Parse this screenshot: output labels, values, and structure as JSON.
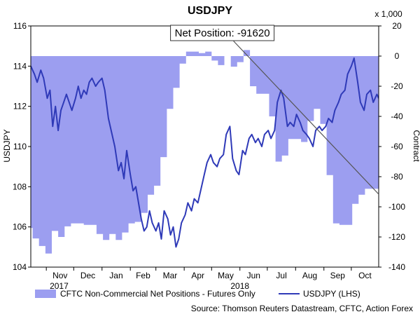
{
  "chart_data": {
    "type": "line",
    "title": "USDJPY",
    "ylabel_left": "USDJPY",
    "ylabel_right": "Contract",
    "right_axis_multiplier": "x 1,000",
    "x_range": [
      "2017-10-15",
      "2018-10-31"
    ],
    "x_ticks": [
      {
        "date": "2017-11-01",
        "label": "Nov"
      },
      {
        "date": "2017-12-01",
        "label": "Dec"
      },
      {
        "date": "2018-01-01",
        "label": "Jan"
      },
      {
        "date": "2018-02-01",
        "label": "Feb"
      },
      {
        "date": "2018-03-01",
        "label": "Mar"
      },
      {
        "date": "2018-04-01",
        "label": "Apr"
      },
      {
        "date": "2018-05-01",
        "label": "May"
      },
      {
        "date": "2018-06-01",
        "label": "Jun"
      },
      {
        "date": "2018-07-01",
        "label": "Jul"
      },
      {
        "date": "2018-08-01",
        "label": "Aug"
      },
      {
        "date": "2018-09-01",
        "label": "Sep"
      },
      {
        "date": "2018-10-01",
        "label": "Oct"
      }
    ],
    "year_labels": [
      {
        "date": "2017-11-15",
        "label": "2017"
      },
      {
        "date": "2018-06-01",
        "label": "2018"
      }
    ],
    "y_left": {
      "min": 104,
      "max": 116,
      "ticks": [
        104,
        106,
        108,
        110,
        112,
        114,
        116
      ]
    },
    "y_right": {
      "min": -140,
      "max": 20,
      "ticks": [
        20,
        0,
        -20,
        -40,
        -60,
        -80,
        -100,
        -120,
        -140
      ]
    },
    "grid": false,
    "series": [
      {
        "name": "CFTC Non-Commercial Net Positions - Futures Only",
        "type": "area",
        "axis": "right",
        "color": "#9c9ef0",
        "points": [
          [
            "2017-10-15",
            -114
          ],
          [
            "2017-10-17",
            -114
          ],
          [
            "2017-10-17",
            -121
          ],
          [
            "2017-10-24",
            -121
          ],
          [
            "2017-10-24",
            -126
          ],
          [
            "2017-10-31",
            -126
          ],
          [
            "2017-10-31",
            -131
          ],
          [
            "2017-11-07",
            -131
          ],
          [
            "2017-11-07",
            -116
          ],
          [
            "2017-11-14",
            -116
          ],
          [
            "2017-11-14",
            -120
          ],
          [
            "2017-11-21",
            -120
          ],
          [
            "2017-11-21",
            -113
          ],
          [
            "2017-11-28",
            -113
          ],
          [
            "2017-11-28",
            -111
          ],
          [
            "2017-12-05",
            -111
          ],
          [
            "2017-12-05",
            -111
          ],
          [
            "2017-12-12",
            -111
          ],
          [
            "2017-12-12",
            -112
          ],
          [
            "2017-12-19",
            -112
          ],
          [
            "2017-12-19",
            -112
          ],
          [
            "2017-12-26",
            -112
          ],
          [
            "2017-12-26",
            -118
          ],
          [
            "2018-01-02",
            -118
          ],
          [
            "2018-01-02",
            -122
          ],
          [
            "2018-01-09",
            -122
          ],
          [
            "2018-01-09",
            -118
          ],
          [
            "2018-01-16",
            -118
          ],
          [
            "2018-01-16",
            -122
          ],
          [
            "2018-01-23",
            -122
          ],
          [
            "2018-01-23",
            -117
          ],
          [
            "2018-01-30",
            -117
          ],
          [
            "2018-01-30",
            -111
          ],
          [
            "2018-02-06",
            -111
          ],
          [
            "2018-02-06",
            -110
          ],
          [
            "2018-02-13",
            -110
          ],
          [
            "2018-02-13",
            -104
          ],
          [
            "2018-02-20",
            -104
          ],
          [
            "2018-02-20",
            -92
          ],
          [
            "2018-02-27",
            -92
          ],
          [
            "2018-02-27",
            -86
          ],
          [
            "2018-03-06",
            -86
          ],
          [
            "2018-03-06",
            -67
          ],
          [
            "2018-03-13",
            -67
          ],
          [
            "2018-03-13",
            -35
          ],
          [
            "2018-03-20",
            -35
          ],
          [
            "2018-03-20",
            -21
          ],
          [
            "2018-03-27",
            -21
          ],
          [
            "2018-03-27",
            -5
          ],
          [
            "2018-04-03",
            -5
          ],
          [
            "2018-04-03",
            3
          ],
          [
            "2018-04-10",
            3
          ],
          [
            "2018-04-10",
            3
          ],
          [
            "2018-04-17",
            3
          ],
          [
            "2018-04-17",
            2
          ],
          [
            "2018-04-24",
            2
          ],
          [
            "2018-04-24",
            3
          ],
          [
            "2018-05-01",
            3
          ],
          [
            "2018-05-01",
            -3
          ],
          [
            "2018-05-08",
            -3
          ],
          [
            "2018-05-08",
            -6
          ],
          [
            "2018-05-15",
            -6
          ],
          [
            "2018-05-15",
            0
          ],
          [
            "2018-05-22",
            0
          ],
          [
            "2018-05-22",
            -7
          ],
          [
            "2018-05-29",
            -7
          ],
          [
            "2018-05-29",
            -4
          ],
          [
            "2018-06-05",
            -4
          ],
          [
            "2018-06-05",
            4
          ],
          [
            "2018-06-12",
            4
          ],
          [
            "2018-06-12",
            -20
          ],
          [
            "2018-06-19",
            -20
          ],
          [
            "2018-06-19",
            -25
          ],
          [
            "2018-06-26",
            -25
          ],
          [
            "2018-06-26",
            -25
          ],
          [
            "2018-07-03",
            -25
          ],
          [
            "2018-07-03",
            -40
          ],
          [
            "2018-07-10",
            -40
          ],
          [
            "2018-07-10",
            -70
          ],
          [
            "2018-07-17",
            -70
          ],
          [
            "2018-07-17",
            -66
          ],
          [
            "2018-07-24",
            -66
          ],
          [
            "2018-07-24",
            -55
          ],
          [
            "2018-07-31",
            -55
          ],
          [
            "2018-07-31",
            -55
          ],
          [
            "2018-08-07",
            -55
          ],
          [
            "2018-08-07",
            -57
          ],
          [
            "2018-08-14",
            -57
          ],
          [
            "2018-08-14",
            -43
          ],
          [
            "2018-08-21",
            -43
          ],
          [
            "2018-08-21",
            -35
          ],
          [
            "2018-08-28",
            -35
          ],
          [
            "2018-08-28",
            -45
          ],
          [
            "2018-09-04",
            -45
          ],
          [
            "2018-09-04",
            -79
          ],
          [
            "2018-09-11",
            -79
          ],
          [
            "2018-09-11",
            -111
          ],
          [
            "2018-09-18",
            -111
          ],
          [
            "2018-09-18",
            -112
          ],
          [
            "2018-09-25",
            -112
          ],
          [
            "2018-09-25",
            -112
          ],
          [
            "2018-10-02",
            -112
          ],
          [
            "2018-10-02",
            -98
          ],
          [
            "2018-10-09",
            -98
          ],
          [
            "2018-10-09",
            -92
          ],
          [
            "2018-10-16",
            -92
          ],
          [
            "2018-10-16",
            -88
          ],
          [
            "2018-10-31",
            -88
          ]
        ]
      },
      {
        "name": "USDJPY (LHS)",
        "type": "line",
        "axis": "left",
        "color": "#2f3ab8",
        "points": [
          [
            "2017-10-15",
            114.0
          ],
          [
            "2017-10-19",
            113.6
          ],
          [
            "2017-10-22",
            113.2
          ],
          [
            "2017-10-26",
            113.8
          ],
          [
            "2017-10-29",
            113.4
          ],
          [
            "2017-11-02",
            112.4
          ],
          [
            "2017-11-05",
            112.8
          ],
          [
            "2017-11-08",
            111.0
          ],
          [
            "2017-11-11",
            112.0
          ],
          [
            "2017-11-14",
            110.8
          ],
          [
            "2017-11-17",
            111.8
          ],
          [
            "2017-11-20",
            112.2
          ],
          [
            "2017-11-23",
            112.6
          ],
          [
            "2017-11-26",
            112.2
          ],
          [
            "2017-11-29",
            111.8
          ],
          [
            "2017-12-03",
            112.4
          ],
          [
            "2017-12-06",
            113.0
          ],
          [
            "2017-12-09",
            112.4
          ],
          [
            "2017-12-12",
            112.8
          ],
          [
            "2017-12-15",
            112.6
          ],
          [
            "2017-12-18",
            113.2
          ],
          [
            "2017-12-21",
            113.4
          ],
          [
            "2017-12-25",
            113.0
          ],
          [
            "2017-12-28",
            113.2
          ],
          [
            "2018-01-01",
            113.4
          ],
          [
            "2018-01-04",
            112.8
          ],
          [
            "2018-01-08",
            111.4
          ],
          [
            "2018-01-11",
            110.8
          ],
          [
            "2018-01-15",
            110.0
          ],
          [
            "2018-01-19",
            108.8
          ],
          [
            "2018-01-22",
            109.2
          ],
          [
            "2018-01-25",
            108.4
          ],
          [
            "2018-01-28",
            109.8
          ],
          [
            "2018-02-01",
            108.6
          ],
          [
            "2018-02-04",
            107.8
          ],
          [
            "2018-02-07",
            108.0
          ],
          [
            "2018-02-10",
            107.2
          ],
          [
            "2018-02-13",
            106.4
          ],
          [
            "2018-02-16",
            105.8
          ],
          [
            "2018-02-19",
            106.0
          ],
          [
            "2018-02-22",
            106.8
          ],
          [
            "2018-02-25",
            106.2
          ],
          [
            "2018-03-01",
            105.8
          ],
          [
            "2018-03-04",
            106.2
          ],
          [
            "2018-03-07",
            105.4
          ],
          [
            "2018-03-10",
            106.8
          ],
          [
            "2018-03-14",
            106.4
          ],
          [
            "2018-03-17",
            105.6
          ],
          [
            "2018-03-20",
            106.0
          ],
          [
            "2018-03-23",
            105.0
          ],
          [
            "2018-03-26",
            105.4
          ],
          [
            "2018-03-29",
            106.2
          ],
          [
            "2018-04-02",
            106.6
          ],
          [
            "2018-04-05",
            107.2
          ],
          [
            "2018-04-09",
            106.8
          ],
          [
            "2018-04-12",
            107.4
          ],
          [
            "2018-04-16",
            107.2
          ],
          [
            "2018-04-19",
            107.8
          ],
          [
            "2018-04-23",
            108.6
          ],
          [
            "2018-04-26",
            109.2
          ],
          [
            "2018-04-30",
            109.6
          ],
          [
            "2018-05-03",
            109.2
          ],
          [
            "2018-05-07",
            109.0
          ],
          [
            "2018-05-10",
            109.4
          ],
          [
            "2018-05-14",
            109.6
          ],
          [
            "2018-05-17",
            110.6
          ],
          [
            "2018-05-21",
            111.0
          ],
          [
            "2018-05-24",
            109.4
          ],
          [
            "2018-05-28",
            108.8
          ],
          [
            "2018-05-31",
            108.6
          ],
          [
            "2018-06-04",
            109.8
          ],
          [
            "2018-06-07",
            109.6
          ],
          [
            "2018-06-11",
            110.4
          ],
          [
            "2018-06-14",
            110.6
          ],
          [
            "2018-06-18",
            110.2
          ],
          [
            "2018-06-21",
            110.4
          ],
          [
            "2018-06-25",
            110.0
          ],
          [
            "2018-06-28",
            110.6
          ],
          [
            "2018-07-02",
            110.8
          ],
          [
            "2018-07-05",
            110.4
          ],
          [
            "2018-07-09",
            110.8
          ],
          [
            "2018-07-12",
            112.2
          ],
          [
            "2018-07-16",
            112.8
          ],
          [
            "2018-07-19",
            112.4
          ],
          [
            "2018-07-23",
            111.0
          ],
          [
            "2018-07-26",
            111.2
          ],
          [
            "2018-07-30",
            111.0
          ],
          [
            "2018-08-02",
            111.6
          ],
          [
            "2018-08-06",
            111.2
          ],
          [
            "2018-08-09",
            110.8
          ],
          [
            "2018-08-13",
            110.6
          ],
          [
            "2018-08-16",
            110.4
          ],
          [
            "2018-08-20",
            110.0
          ],
          [
            "2018-08-23",
            110.8
          ],
          [
            "2018-08-27",
            111.0
          ],
          [
            "2018-08-30",
            110.8
          ],
          [
            "2018-09-03",
            111.0
          ],
          [
            "2018-09-06",
            111.4
          ],
          [
            "2018-09-10",
            111.2
          ],
          [
            "2018-09-13",
            111.8
          ],
          [
            "2018-09-17",
            112.2
          ],
          [
            "2018-09-20",
            112.6
          ],
          [
            "2018-09-24",
            112.8
          ],
          [
            "2018-09-27",
            113.6
          ],
          [
            "2018-10-01",
            114.0
          ],
          [
            "2018-10-04",
            114.4
          ],
          [
            "2018-10-08",
            113.2
          ],
          [
            "2018-10-11",
            112.2
          ],
          [
            "2018-10-15",
            111.8
          ],
          [
            "2018-10-18",
            112.6
          ],
          [
            "2018-10-22",
            112.8
          ],
          [
            "2018-10-25",
            112.2
          ],
          [
            "2018-10-29",
            112.6
          ],
          [
            "2018-10-31",
            112.4
          ]
        ]
      }
    ],
    "annotation": {
      "text": "Net Position: -91620",
      "value": -91620,
      "axis": "right",
      "trendline_start": {
        "date": "2018-05-25",
        "value": 10
      },
      "trendline_end": {
        "date": "2018-10-31",
        "value": -91.62
      }
    },
    "legend": {
      "placement": "bottom",
      "entries": [
        "CFTC Non-Commercial Net Positions - Futures Only",
        "USDJPY (LHS)"
      ]
    },
    "source": "Source: Thomson Reuters Datastream, CFTC, Action Forex"
  }
}
